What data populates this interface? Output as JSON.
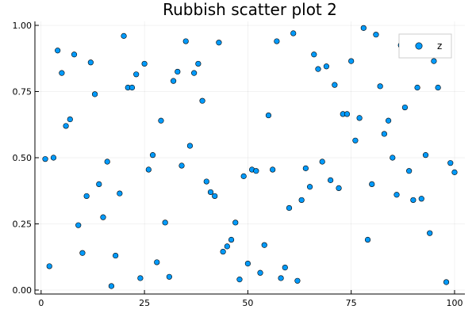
{
  "chart_data": {
    "type": "scatter",
    "title": "Rubbish scatter plot 2",
    "xlabel": "",
    "ylabel": "",
    "xlim": [
      -1.5,
      102.5
    ],
    "ylim": [
      -0.015,
      1.015
    ],
    "xticks": [
      0,
      25,
      50,
      75,
      100
    ],
    "xtick_labels": [
      "0",
      "25",
      "50",
      "75",
      "100"
    ],
    "yticks": [
      0.0,
      0.25,
      0.5,
      0.75,
      1.0
    ],
    "ytick_labels": [
      "0.00",
      "0.25",
      "0.50",
      "0.75",
      "1.00"
    ],
    "grid": true,
    "legend_position": "top-right",
    "series": [
      {
        "name": "z",
        "color": "#009AFA",
        "x": [
          1,
          2,
          3,
          4,
          5,
          6,
          7,
          8,
          9,
          10,
          11,
          12,
          13,
          14,
          15,
          16,
          17,
          18,
          19,
          20,
          21,
          22,
          23,
          24,
          25,
          26,
          27,
          28,
          29,
          30,
          31,
          32,
          33,
          34,
          35,
          36,
          37,
          38,
          39,
          40,
          41,
          42,
          43,
          44,
          45,
          46,
          47,
          48,
          49,
          50,
          51,
          52,
          53,
          54,
          55,
          56,
          57,
          58,
          59,
          60,
          61,
          62,
          63,
          64,
          65,
          66,
          67,
          68,
          69,
          70,
          71,
          72,
          73,
          74,
          75,
          76,
          77,
          78,
          79,
          80,
          81,
          82,
          83,
          84,
          85,
          86,
          87,
          88,
          89,
          90,
          91,
          92,
          93,
          94,
          95,
          96,
          97,
          98,
          99,
          100
        ],
        "y": [
          0.495,
          0.09,
          0.5,
          0.905,
          0.82,
          0.62,
          0.645,
          0.89,
          0.245,
          0.14,
          0.355,
          0.86,
          0.74,
          0.4,
          0.275,
          0.485,
          0.015,
          0.13,
          0.365,
          0.96,
          0.765,
          0.765,
          0.815,
          0.045,
          0.855,
          0.455,
          0.51,
          0.105,
          0.64,
          0.255,
          0.05,
          0.79,
          0.825,
          0.47,
          0.94,
          0.545,
          0.82,
          0.855,
          0.715,
          0.41,
          0.37,
          0.355,
          0.935,
          0.145,
          0.165,
          0.19,
          0.255,
          0.04,
          0.43,
          0.1,
          0.455,
          0.45,
          0.065,
          0.17,
          0.66,
          0.455,
          0.94,
          0.045,
          0.085,
          0.31,
          0.97,
          0.035,
          0.34,
          0.46,
          0.39,
          0.89,
          0.835,
          0.485,
          0.845,
          0.415,
          0.775,
          0.385,
          0.665,
          0.665,
          0.865,
          0.565,
          0.65,
          0.99,
          0.19,
          0.4,
          0.965,
          0.77,
          0.59,
          0.64,
          0.5,
          0.36,
          0.925,
          0.69,
          0.45,
          0.34,
          0.765,
          0.345,
          0.51,
          0.215,
          0.865,
          0.765,
          0.925,
          0.03,
          0.48,
          0.445
        ]
      }
    ]
  }
}
